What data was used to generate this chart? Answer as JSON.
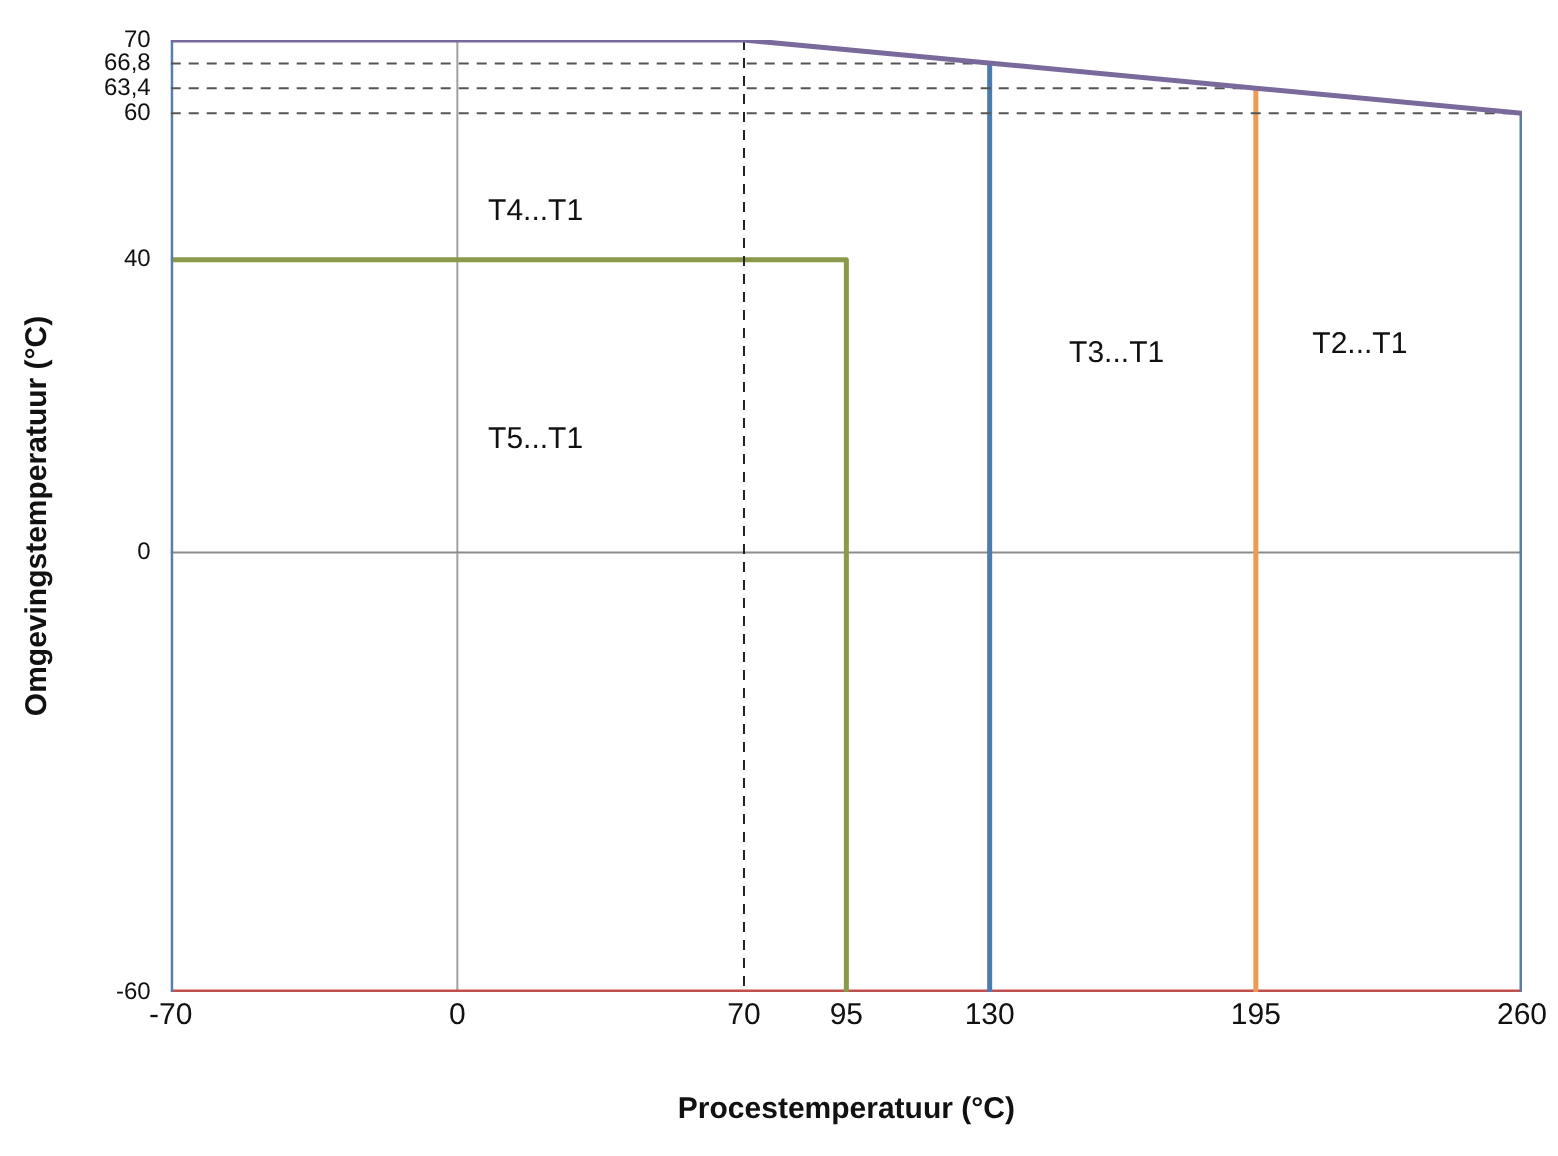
{
  "chart_data": {
    "type": "line",
    "xlabel": "Procestemperatuur (°C)",
    "ylabel": "Omgevingstemperatuur (°C)",
    "xlim": [
      -70,
      260
    ],
    "ylim": [
      -60,
      70
    ],
    "xticks": [
      -70,
      0,
      70,
      95,
      130,
      195,
      260
    ],
    "yticks": [
      -60,
      0,
      40,
      60,
      {
        "value": 63.4,
        "label": "63,4"
      },
      {
        "value": 66.8,
        "label": "66,8"
      },
      70
    ],
    "grid": false,
    "legend": false,
    "marker": "none",
    "series": [
      {
        "type": "line",
        "x": [
          -70,
          70,
          260
        ],
        "values": [
          70,
          70,
          60
        ],
        "color": "#7a6a9c",
        "line_style": "solid"
      },
      {
        "type": "line",
        "x": [
          -70,
          130
        ],
        "values": [
          66.8,
          66.8
        ],
        "color": "#555555",
        "line_style": "dashed"
      },
      {
        "type": "line",
        "x": [
          -70,
          195
        ],
        "values": [
          63.4,
          63.4
        ],
        "color": "#555555",
        "line_style": "dashed"
      },
      {
        "type": "line",
        "x": [
          -70,
          260
        ],
        "values": [
          60,
          60
        ],
        "color": "#555555",
        "line_style": "dashed"
      },
      {
        "type": "line",
        "x": [
          70,
          70
        ],
        "values": [
          70,
          -60
        ],
        "color": "#222222",
        "line_style": "dashed"
      },
      {
        "type": "line",
        "x": [
          -70,
          -70
        ],
        "values": [
          -60,
          70
        ],
        "color": "#5a7fa6",
        "line_style": "solid"
      },
      {
        "type": "line",
        "x": [
          260,
          260
        ],
        "values": [
          -60,
          60
        ],
        "color": "#5a7fa6",
        "line_style": "solid"
      },
      {
        "type": "line",
        "x": [
          -70,
          95,
          95
        ],
        "values": [
          40,
          40,
          -60
        ],
        "color": "#8b9a4a",
        "line_style": "solid"
      },
      {
        "type": "line",
        "x": [
          130,
          130
        ],
        "values": [
          -60,
          66.8
        ],
        "color": "#4b7bb0",
        "line_style": "solid"
      },
      {
        "type": "line",
        "x": [
          195,
          195
        ],
        "values": [
          -60,
          63.4
        ],
        "color": "#ee9a55",
        "line_style": "solid"
      },
      {
        "type": "line",
        "x": [
          -70,
          260
        ],
        "values": [
          -60,
          -60
        ],
        "color": "#c0504d",
        "line_style": "solid"
      }
    ],
    "ref_lines": [
      {
        "axis": "x",
        "value": 0,
        "color": "#a0a0a0"
      },
      {
        "axis": "y",
        "value": 0,
        "color": "#8c8c8c"
      }
    ],
    "annotations": [
      "T4...T1",
      "T5...T1",
      "T3...T1",
      "T2...T1"
    ]
  }
}
